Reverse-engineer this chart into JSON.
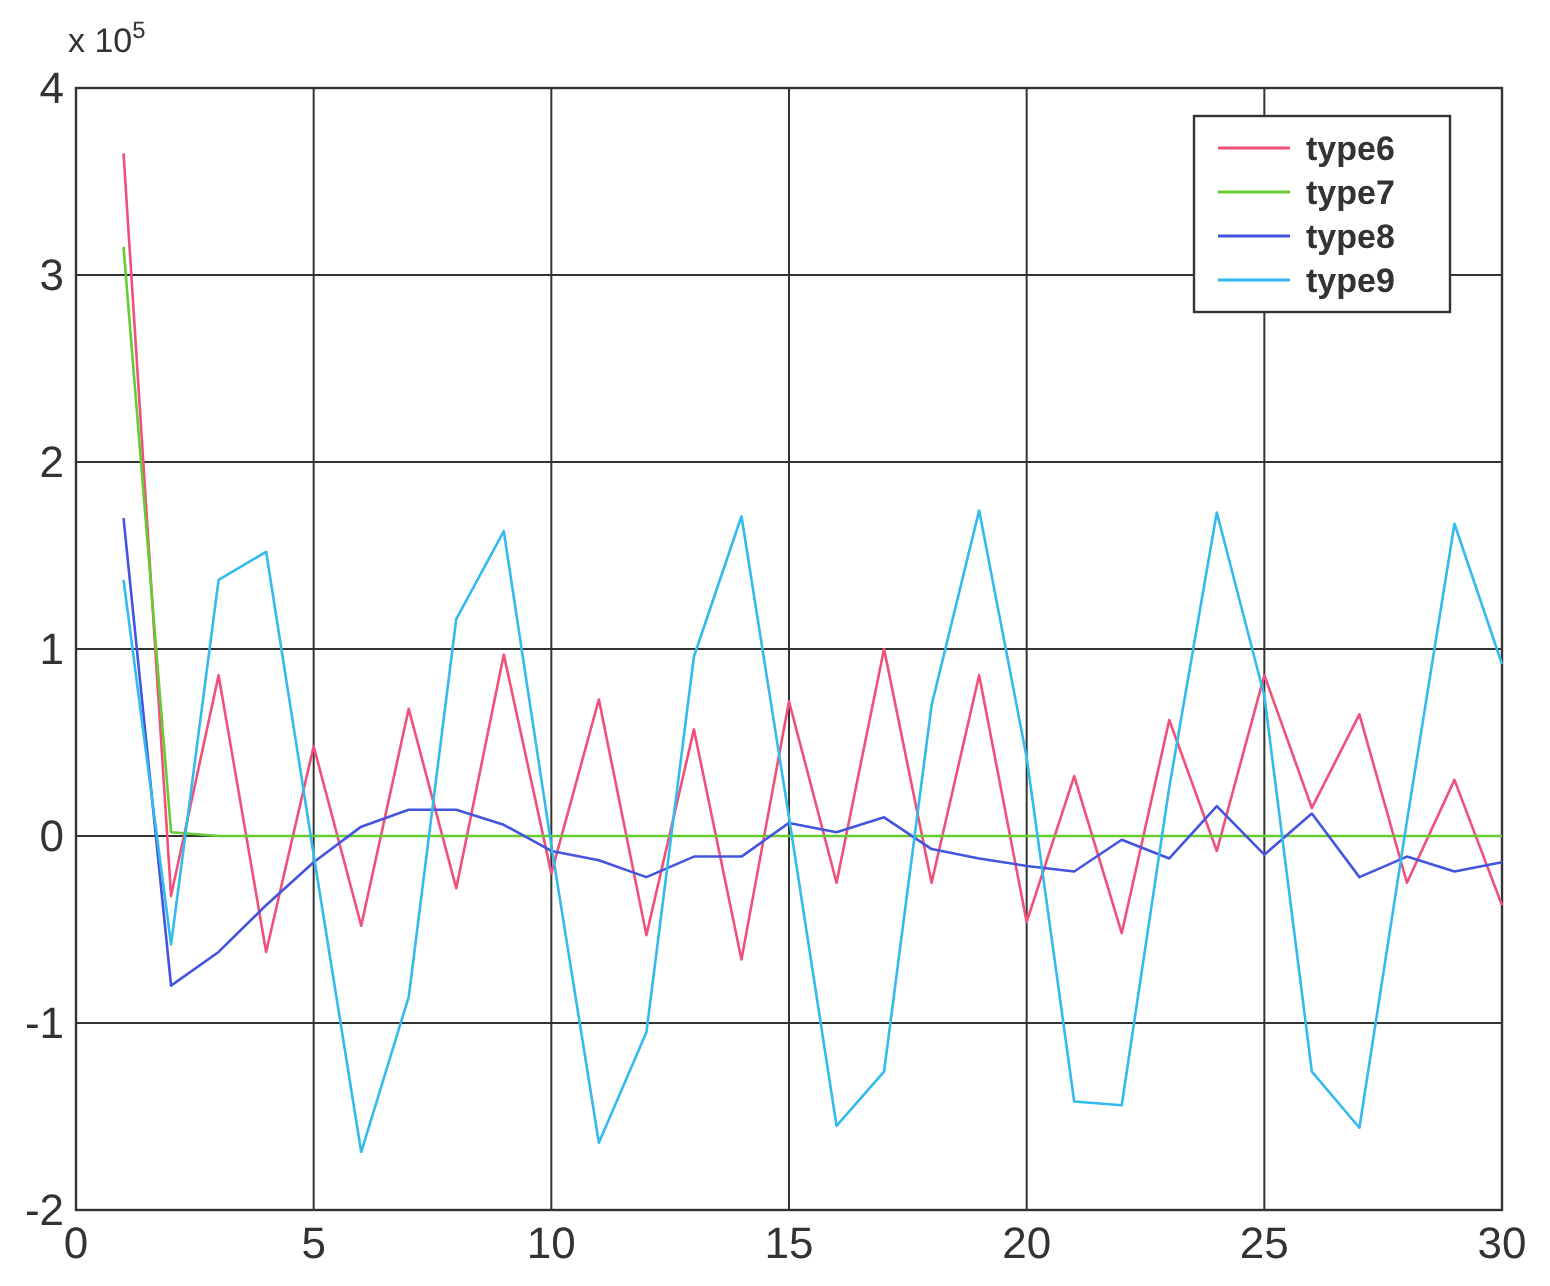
{
  "chart_data": {
    "type": "line",
    "x": [
      1,
      2,
      3,
      4,
      5,
      6,
      7,
      8,
      9,
      10,
      11,
      12,
      13,
      14,
      15,
      16,
      17,
      18,
      19,
      20,
      21,
      22,
      23,
      24,
      25,
      26,
      27,
      28,
      29,
      30
    ],
    "series": [
      {
        "name": "type6",
        "color": "#f0507a",
        "values": [
          3.65,
          -0.32,
          0.86,
          -0.62,
          0.48,
          -0.48,
          0.68,
          -0.28,
          0.97,
          -0.2,
          0.73,
          -0.53,
          0.57,
          -0.66,
          0.72,
          -0.25,
          1.0,
          -0.25,
          0.86,
          -0.46,
          0.32,
          -0.52,
          0.62,
          -0.08,
          0.86,
          0.15,
          0.65,
          -0.25,
          0.3,
          -0.37
        ]
      },
      {
        "name": "type7",
        "color": "#66cc33",
        "values": [
          3.15,
          0.02,
          0,
          0,
          0,
          0,
          0,
          0,
          0,
          0,
          0,
          0,
          0,
          0,
          0,
          0,
          0,
          0,
          0,
          0,
          0,
          0,
          0,
          0,
          0,
          0,
          0,
          0,
          0,
          0
        ]
      },
      {
        "name": "type8",
        "color": "#4455dd",
        "values": [
          1.7,
          -0.8,
          -0.62,
          -0.37,
          -0.14,
          0.05,
          0.14,
          0.14,
          0.06,
          -0.08,
          -0.13,
          -0.22,
          -0.11,
          -0.11,
          0.07,
          0.02,
          0.1,
          -0.07,
          -0.12,
          -0.16,
          -0.19,
          -0.02,
          -0.12,
          0.16,
          -0.1,
          0.12,
          -0.22,
          -0.11,
          -0.19,
          -0.14
        ]
      },
      {
        "name": "type9",
        "color": "#33bbee",
        "values": [
          1.37,
          -0.58,
          1.37,
          1.52,
          -0.1,
          -1.69,
          -0.86,
          1.16,
          1.63,
          -0.05,
          -1.64,
          -1.05,
          0.96,
          1.71,
          0.1,
          -1.55,
          -1.26,
          0.7,
          1.74,
          0.42,
          -1.42,
          -1.44,
          0.26,
          1.73,
          0.75,
          -1.26,
          -1.56,
          0.08,
          1.67,
          0.92
        ]
      }
    ],
    "xlim": [
      0,
      30
    ],
    "xticks": [
      0,
      5,
      10,
      15,
      20,
      25,
      30
    ],
    "ylim": [
      -2,
      4
    ],
    "yticks": [
      -2,
      -1,
      0,
      1,
      2,
      3,
      4
    ],
    "grid": true,
    "legend": "top right",
    "marker": "none",
    "line_style": "solid",
    "annotations": [
      "x 10$^{5}$"
    ]
  }
}
